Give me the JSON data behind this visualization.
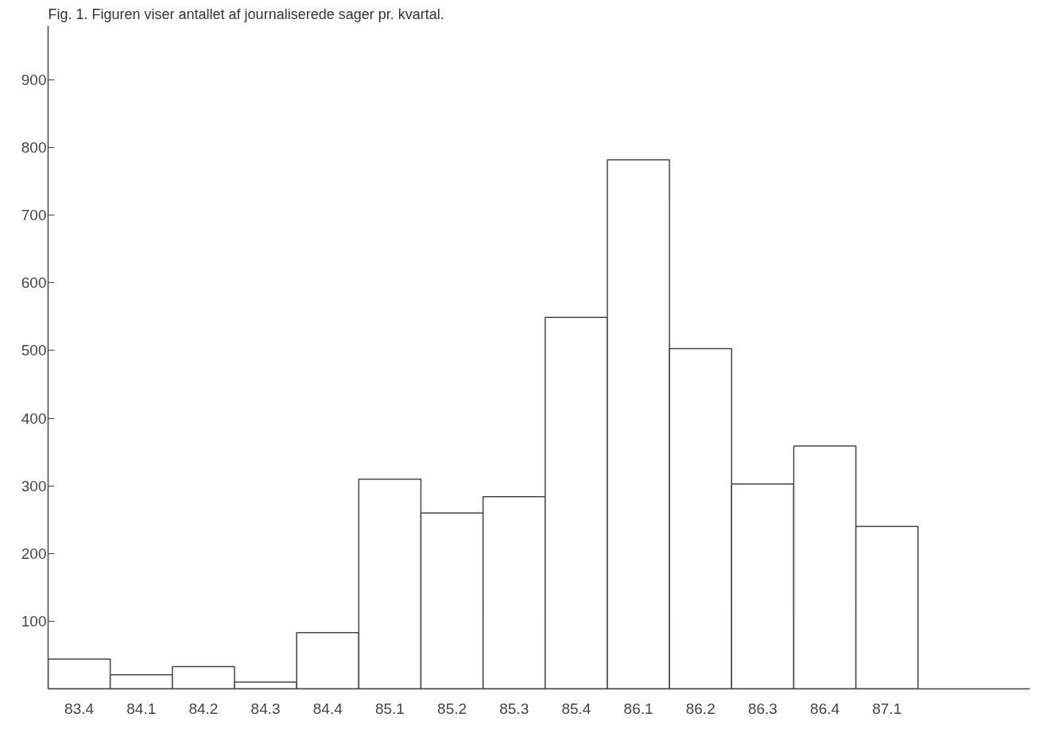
{
  "chart_data": {
    "type": "bar",
    "title": "Fig. 1.  Figuren viser antallet af journaliserede sager pr. kvartal.",
    "categories": [
      "83.4",
      "84.1",
      "84.2",
      "84.3",
      "84.4",
      "85.1",
      "85.2",
      "85.3",
      "85.4",
      "86.1",
      "86.2",
      "86.3",
      "86.4",
      "87.1"
    ],
    "values": [
      44,
      21,
      33,
      10,
      83,
      310,
      260,
      284,
      549,
      782,
      503,
      303,
      359,
      240
    ],
    "color": "#ffffff",
    "ylim": [
      0,
      980
    ],
    "yticks": [
      100,
      200,
      300,
      400,
      500,
      600,
      700,
      800,
      900
    ],
    "grid": false
  }
}
